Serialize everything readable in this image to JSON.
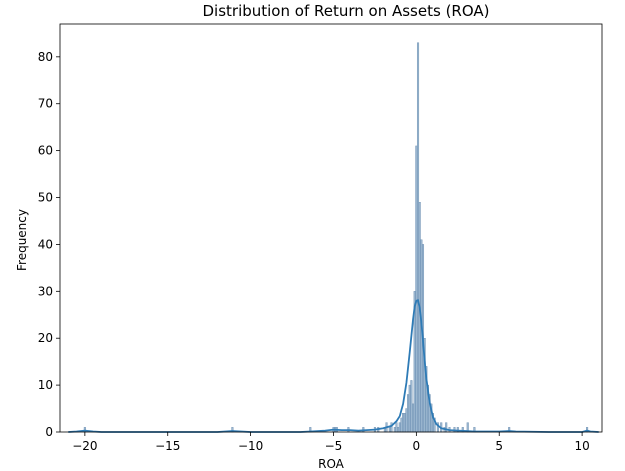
{
  "chart_data": {
    "type": "bar",
    "title": "Distribution of Return on Assets (ROA)",
    "xlabel": "ROA",
    "ylabel": "Frequency",
    "xlim": [
      -21.5,
      11.2
    ],
    "ylim": [
      0,
      87
    ],
    "xticks": [
      {
        "value": -20,
        "label": "−20"
      },
      {
        "value": -15,
        "label": "−15"
      },
      {
        "value": -10,
        "label": "−10"
      },
      {
        "value": -5,
        "label": "−5"
      },
      {
        "value": 0,
        "label": "0"
      },
      {
        "value": 5,
        "label": "5"
      },
      {
        "value": 10,
        "label": "10"
      }
    ],
    "yticks": [
      {
        "value": 0,
        "label": "0"
      },
      {
        "value": 10,
        "label": "10"
      },
      {
        "value": 20,
        "label": "20"
      },
      {
        "value": 30,
        "label": "30"
      },
      {
        "value": 40,
        "label": "40"
      },
      {
        "value": 50,
        "label": "50"
      },
      {
        "value": 60,
        "label": "60"
      },
      {
        "value": 70,
        "label": "70"
      },
      {
        "value": 80,
        "label": "80"
      }
    ],
    "grid": false,
    "bin_width": 0.1,
    "bins": [
      {
        "x": -20.0,
        "count": 1
      },
      {
        "x": -11.1,
        "count": 1
      },
      {
        "x": -6.4,
        "count": 1
      },
      {
        "x": -5.0,
        "count": 1
      },
      {
        "x": -4.9,
        "count": 1
      },
      {
        "x": -4.8,
        "count": 1
      },
      {
        "x": -4.1,
        "count": 1
      },
      {
        "x": -3.2,
        "count": 1
      },
      {
        "x": -2.5,
        "count": 1
      },
      {
        "x": -2.3,
        "count": 1
      },
      {
        "x": -1.9,
        "count": 1
      },
      {
        "x": -1.8,
        "count": 2
      },
      {
        "x": -1.6,
        "count": 1
      },
      {
        "x": -1.5,
        "count": 2
      },
      {
        "x": -1.3,
        "count": 1
      },
      {
        "x": -1.2,
        "count": 2
      },
      {
        "x": -1.1,
        "count": 1
      },
      {
        "x": -1.0,
        "count": 2
      },
      {
        "x": -0.9,
        "count": 3
      },
      {
        "x": -0.8,
        "count": 4
      },
      {
        "x": -0.7,
        "count": 4
      },
      {
        "x": -0.6,
        "count": 5
      },
      {
        "x": -0.5,
        "count": 8
      },
      {
        "x": -0.4,
        "count": 10
      },
      {
        "x": -0.3,
        "count": 11
      },
      {
        "x": -0.2,
        "count": 6
      },
      {
        "x": -0.1,
        "count": 30
      },
      {
        "x": 0.0,
        "count": 61
      },
      {
        "x": 0.1,
        "count": 83
      },
      {
        "x": 0.2,
        "count": 49
      },
      {
        "x": 0.3,
        "count": 41
      },
      {
        "x": 0.4,
        "count": 40
      },
      {
        "x": 0.5,
        "count": 20
      },
      {
        "x": 0.6,
        "count": 14
      },
      {
        "x": 0.7,
        "count": 10
      },
      {
        "x": 0.8,
        "count": 8
      },
      {
        "x": 0.9,
        "count": 6
      },
      {
        "x": 1.0,
        "count": 4
      },
      {
        "x": 1.1,
        "count": 3
      },
      {
        "x": 1.3,
        "count": 2
      },
      {
        "x": 1.5,
        "count": 2
      },
      {
        "x": 1.7,
        "count": 1
      },
      {
        "x": 1.8,
        "count": 2
      },
      {
        "x": 2.0,
        "count": 1
      },
      {
        "x": 2.3,
        "count": 1
      },
      {
        "x": 2.5,
        "count": 1
      },
      {
        "x": 2.8,
        "count": 1
      },
      {
        "x": 3.1,
        "count": 2
      },
      {
        "x": 3.5,
        "count": 1
      },
      {
        "x": 5.6,
        "count": 1
      },
      {
        "x": 10.3,
        "count": 1
      }
    ],
    "kde": {
      "x": [
        -21,
        -20.5,
        -20,
        -19.5,
        -19,
        -15,
        -12,
        -11.1,
        -10,
        -7,
        -6.4,
        -5.5,
        -5,
        -4.5,
        -4,
        -3.5,
        -3,
        -2.5,
        -2,
        -1.5,
        -1.2,
        -1,
        -0.8,
        -0.6,
        -0.4,
        -0.3,
        -0.2,
        -0.1,
        0,
        0.1,
        0.2,
        0.3,
        0.4,
        0.5,
        0.6,
        0.8,
        1,
        1.2,
        1.5,
        2,
        2.5,
        3,
        3.5,
        4,
        5,
        5.6,
        6,
        8,
        10,
        10.3,
        10.5,
        11
      ],
      "y": [
        0,
        0.1,
        0.3,
        0.1,
        0,
        0,
        0,
        0.2,
        0,
        0,
        0.1,
        0.3,
        0.5,
        0.4,
        0.4,
        0.3,
        0.4,
        0.5,
        0.8,
        1.3,
        2.3,
        3.4,
        6,
        10.5,
        17,
        20.5,
        24,
        26.8,
        28,
        28.1,
        26.5,
        23.5,
        19.5,
        15.2,
        11.5,
        6.3,
        3.2,
        1.7,
        0.8,
        0.4,
        0.3,
        0.2,
        0.1,
        0.1,
        0.1,
        0.2,
        0.1,
        0,
        0,
        0.3,
        0.1,
        0
      ]
    },
    "colors": {
      "bar_fill": "#7b9fc0",
      "bar_edge": "#6a8db0",
      "kde_line": "#2e7bb6"
    }
  }
}
